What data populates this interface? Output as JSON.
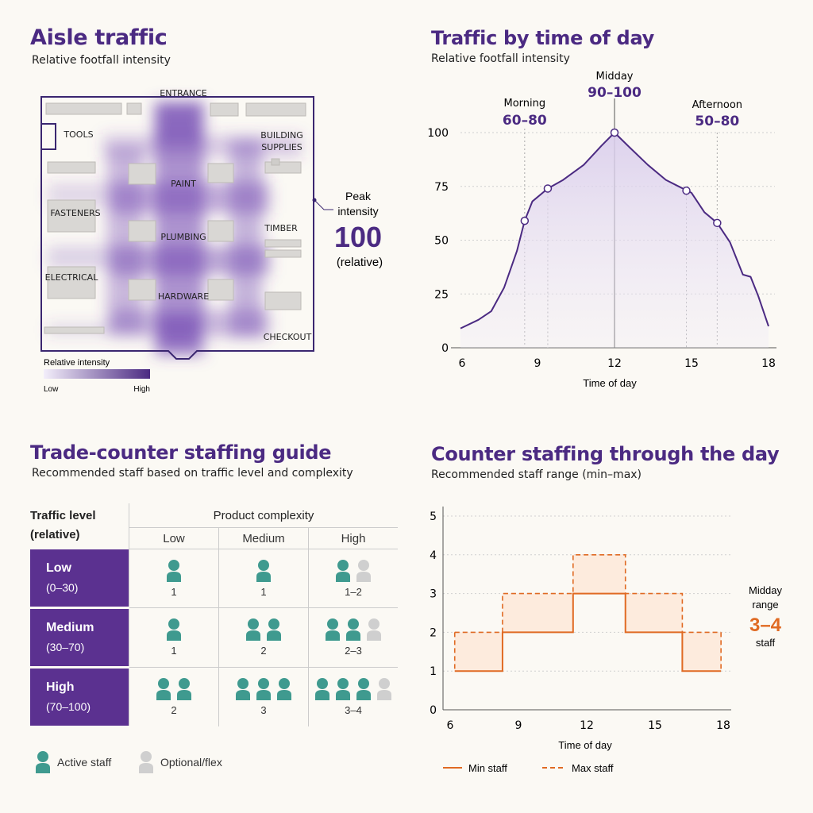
{
  "colors": {
    "accent_purple": "#4b2a82",
    "purple_fill": "#5b3190",
    "teal": "#3f9a8f",
    "grey_person": "#cfcfcf",
    "orange": "#e06a23"
  },
  "aisle": {
    "title": "Aisle traffic",
    "subtitle": "Relative footfall intensity",
    "labels": {
      "entrance": "ENTRANCE",
      "tools": "TOOLS",
      "building1": "BUILDING",
      "building2": "SUPPLIES",
      "paint": "PAINT",
      "fasteners": "FASTENERS",
      "plumbing": "PLUMBING",
      "timber": "TIMBER",
      "electrical": "ELECTRICAL",
      "hardware": "HARDWARE",
      "checkout": "CHECKOUT"
    },
    "peak": {
      "label1": "Peak",
      "label2": "intensity",
      "value": "100",
      "unit": "(relative)"
    },
    "legend": {
      "title": "Relative intensity",
      "low": "Low",
      "high": "High"
    }
  },
  "traffic": {
    "title": "Traffic by time of day",
    "subtitle": "Relative footfall intensity",
    "xlabel": "Time of day",
    "annotations": [
      {
        "name": "Morning",
        "range": "60–80"
      },
      {
        "name": "Midday",
        "range": "90–100"
      },
      {
        "name": "Afternoon",
        "range": "50–80"
      }
    ]
  },
  "staffing": {
    "title": "Trade-counter staffing guide",
    "subtitle": "Recommended staff based on traffic level and complexity",
    "traffic_header1": "Traffic level",
    "traffic_header2": "(relative)",
    "complexity_header": "Product complexity",
    "columns": [
      "Low",
      "Medium",
      "High"
    ],
    "rows": [
      {
        "level": "Low",
        "range": "(0–30)",
        "cells": [
          {
            "active": 1,
            "optional": 0,
            "label": "1"
          },
          {
            "active": 1,
            "optional": 0,
            "label": "1"
          },
          {
            "active": 1,
            "optional": 1,
            "label": "1–2"
          }
        ]
      },
      {
        "level": "Medium",
        "range": "(30–70)",
        "cells": [
          {
            "active": 1,
            "optional": 0,
            "label": "1"
          },
          {
            "active": 2,
            "optional": 0,
            "label": "2"
          },
          {
            "active": 2,
            "optional": 1,
            "label": "2–3"
          }
        ]
      },
      {
        "level": "High",
        "range": "(70–100)",
        "cells": [
          {
            "active": 2,
            "optional": 0,
            "label": "2"
          },
          {
            "active": 3,
            "optional": 0,
            "label": "3"
          },
          {
            "active": 3,
            "optional": 1,
            "label": "3–4"
          }
        ]
      }
    ],
    "legend": {
      "active": "Active staff",
      "optional": "Optional/flex"
    }
  },
  "counter": {
    "title": "Counter staffing through the day",
    "subtitle": "Recommended staff range (min–max)",
    "xlabel": "Time of day",
    "callout": {
      "line1": "Midday",
      "line2": "range",
      "value": "3–4",
      "unit": "staff"
    },
    "legend": {
      "min": "Min staff",
      "max": "Max staff"
    }
  },
  "chart_data": [
    {
      "type": "heatmap",
      "title": "Aisle traffic",
      "subtitle": "Relative footfall intensity",
      "legend_title": "Relative intensity",
      "scale": {
        "low": "Low",
        "high": "High"
      },
      "peak_value": 100,
      "zones": [
        "ENTRANCE",
        "TOOLS",
        "BUILDING SUPPLIES",
        "PAINT",
        "FASTENERS",
        "PLUMBING",
        "TIMBER",
        "ELECTRICAL",
        "HARDWARE",
        "CHECKOUT"
      ]
    },
    {
      "type": "area",
      "title": "Traffic by time of day",
      "subtitle": "Relative footfall intensity",
      "xlabel": "Time of day",
      "ylabel": "",
      "xlim": [
        6,
        18
      ],
      "ylim": [
        0,
        100
      ],
      "xticks": [
        6,
        9,
        12,
        15,
        18
      ],
      "yticks": [
        0,
        25,
        50,
        75,
        100
      ],
      "grid": true,
      "x": [
        6,
        6.7,
        7.2,
        7.7,
        8.2,
        8.5,
        8.8,
        9.4,
        10,
        10.8,
        11.5,
        12,
        12.6,
        13.3,
        14,
        14.5,
        15,
        15.5,
        16,
        16.5,
        17,
        17.3,
        17.6,
        18
      ],
      "y": [
        9,
        13,
        17,
        28,
        45,
        59,
        68,
        74,
        78,
        85,
        94,
        100,
        93,
        85,
        78,
        75,
        72,
        63,
        58,
        49,
        34,
        33,
        24,
        10
      ],
      "markers": [
        {
          "x": 8.5,
          "y": 59
        },
        {
          "x": 9.4,
          "y": 74
        },
        {
          "x": 12,
          "y": 100
        },
        {
          "x": 14.8,
          "y": 73
        },
        {
          "x": 16,
          "y": 58
        }
      ],
      "annotations": [
        {
          "label": "Morning",
          "range": "60–80",
          "x": 8.5
        },
        {
          "label": "Midday",
          "range": "90–100",
          "x": 12
        },
        {
          "label": "Afternoon",
          "range": "50–80",
          "x": 16
        }
      ]
    },
    {
      "type": "table",
      "title": "Trade-counter staffing guide",
      "row_header": "Traffic level (relative)",
      "column_header": "Product complexity",
      "columns": [
        "Low",
        "Medium",
        "High"
      ],
      "rows": [
        "Low (0–30)",
        "Medium (30–70)",
        "High (70–100)"
      ],
      "values": [
        [
          "1",
          "1",
          "1–2"
        ],
        [
          "1",
          "2",
          "2–3"
        ],
        [
          "2",
          "3",
          "3–4"
        ]
      ]
    },
    {
      "type": "line",
      "title": "Counter staffing through the day",
      "subtitle": "Recommended staff range (min–max)",
      "xlabel": "Time of day",
      "xlim": [
        6,
        18
      ],
      "ylim": [
        0,
        5
      ],
      "xticks": [
        6,
        9,
        12,
        15,
        18
      ],
      "yticks": [
        0,
        1,
        2,
        3,
        4,
        5
      ],
      "grid": true,
      "series": [
        {
          "name": "Min staff",
          "style": "solid",
          "steps": [
            {
              "from": 6.2,
              "to": 8.3,
              "value": 1
            },
            {
              "from": 8.3,
              "to": 11.4,
              "value": 2
            },
            {
              "from": 11.4,
              "to": 13.7,
              "value": 3
            },
            {
              "from": 13.7,
              "to": 16.2,
              "value": 2
            },
            {
              "from": 16.2,
              "to": 17.9,
              "value": 1
            }
          ]
        },
        {
          "name": "Max staff",
          "style": "dashed",
          "steps": [
            {
              "from": 6.2,
              "to": 8.3,
              "value": 2
            },
            {
              "from": 8.3,
              "to": 11.4,
              "value": 3
            },
            {
              "from": 11.4,
              "to": 13.7,
              "value": 4
            },
            {
              "from": 13.7,
              "to": 16.2,
              "value": 3
            },
            {
              "from": 16.2,
              "to": 17.9,
              "value": 2
            }
          ]
        }
      ],
      "callout": {
        "label": "Midday range",
        "value": "3–4",
        "unit": "staff"
      }
    }
  ]
}
